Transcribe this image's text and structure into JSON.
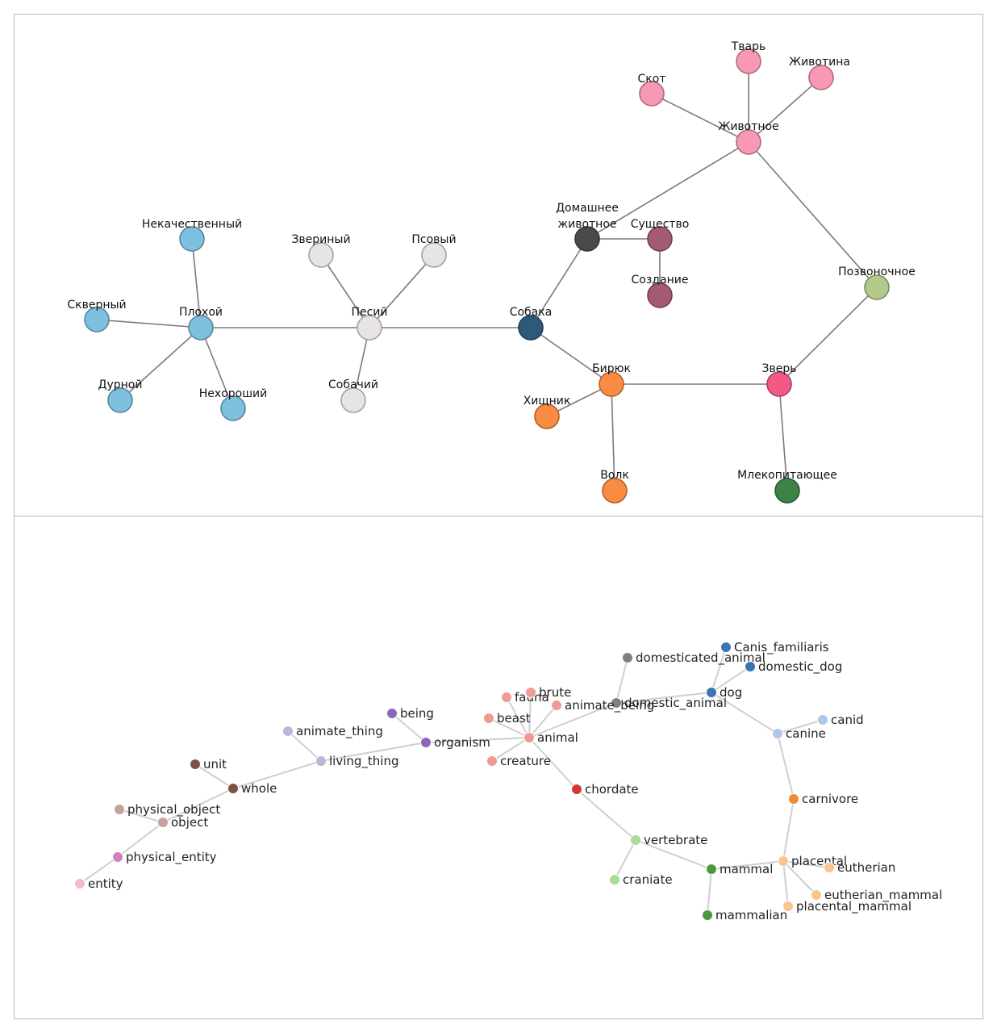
{
  "graph_ru": {
    "nodes": [
      {
        "id": "Некачественный",
        "color": "#7ec0de"
      },
      {
        "id": "Скверный",
        "color": "#7ec0de"
      },
      {
        "id": "Плохой",
        "color": "#7ec0de"
      },
      {
        "id": "Дурной",
        "color": "#7ec0de"
      },
      {
        "id": "Нехороший",
        "color": "#7ec0de"
      },
      {
        "id": "Звериный",
        "color": "#e8e4e6"
      },
      {
        "id": "Псовый",
        "color": "#e8e4e6"
      },
      {
        "id": "Песий",
        "color": "#e8e4e6"
      },
      {
        "id": "Собачий",
        "color": "#e8e4e6"
      },
      {
        "id": "Собака",
        "color": "#2d5a7b"
      },
      {
        "id": "Домашнее животное",
        "color": "#4a4a4a"
      },
      {
        "id": "Существо",
        "color": "#a45a75"
      },
      {
        "id": "Создание",
        "color": "#a45a75"
      },
      {
        "id": "Скот",
        "color": "#f799b2"
      },
      {
        "id": "Тварь",
        "color": "#f799b2"
      },
      {
        "id": "Животина",
        "color": "#f799b2"
      },
      {
        "id": "Животное",
        "color": "#f799b2"
      },
      {
        "id": "Позвоночное",
        "color": "#b2c98a"
      },
      {
        "id": "Бирюк",
        "color": "#f98b42"
      },
      {
        "id": "Хищник",
        "color": "#f98b42"
      },
      {
        "id": "Волк",
        "color": "#f98b42"
      },
      {
        "id": "Зверь",
        "color": "#f25a85"
      },
      {
        "id": "Млекопитающее",
        "color": "#3e8246"
      }
    ],
    "edges": [
      [
        "Некачественный",
        "Плохой"
      ],
      [
        "Скверный",
        "Плохой"
      ],
      [
        "Дурной",
        "Плохой"
      ],
      [
        "Нехороший",
        "Плохой"
      ],
      [
        "Плохой",
        "Песий"
      ],
      [
        "Звериный",
        "Песий"
      ],
      [
        "Псовый",
        "Песий"
      ],
      [
        "Собачий",
        "Песий"
      ],
      [
        "Песий",
        "Собака"
      ],
      [
        "Собака",
        "Домашнее животное"
      ],
      [
        "Собака",
        "Бирюк"
      ],
      [
        "Домашнее животное",
        "Существо"
      ],
      [
        "Домашнее животное",
        "Животное"
      ],
      [
        "Существо",
        "Создание"
      ],
      [
        "Скот",
        "Животное"
      ],
      [
        "Тварь",
        "Животное"
      ],
      [
        "Животина",
        "Животное"
      ],
      [
        "Животное",
        "Позвоночное"
      ],
      [
        "Позвоночное",
        "Зверь"
      ],
      [
        "Бирюк",
        "Хищник"
      ],
      [
        "Бирюк",
        "Волк"
      ],
      [
        "Бирюк",
        "Зверь"
      ],
      [
        "Зверь",
        "Млекопитающее"
      ]
    ]
  },
  "graph_en": {
    "nodes": [
      {
        "id": "domesticated_animal",
        "color": "#7f7f7f"
      },
      {
        "id": "Canis_familiaris",
        "color": "#3a75b0"
      },
      {
        "id": "domestic_dog",
        "color": "#3a75b0"
      },
      {
        "id": "dog",
        "color": "#3a75b0"
      },
      {
        "id": "domestic_animal",
        "color": "#7f7f7f"
      },
      {
        "id": "animate_being",
        "color": "#f09a94"
      },
      {
        "id": "fauna",
        "color": "#f09a94"
      },
      {
        "id": "brute",
        "color": "#f09a94"
      },
      {
        "id": "beast",
        "color": "#f09a94"
      },
      {
        "id": "animal",
        "color": "#f09a94"
      },
      {
        "id": "creature",
        "color": "#f09a94"
      },
      {
        "id": "being",
        "color": "#8c66bb"
      },
      {
        "id": "organism",
        "color": "#8c66bb"
      },
      {
        "id": "animate_thing",
        "color": "#c3b3d6"
      },
      {
        "id": "living_thing",
        "color": "#c3b3d6"
      },
      {
        "id": "unit",
        "color": "#7d5246"
      },
      {
        "id": "whole",
        "color": "#7d5246"
      },
      {
        "id": "physical_object",
        "color": "#c1a39b"
      },
      {
        "id": "object",
        "color": "#c1a39b"
      },
      {
        "id": "physical_entity",
        "color": "#d37ec0"
      },
      {
        "id": "entity",
        "color": "#f2b9d6"
      },
      {
        "id": "canid",
        "color": "#aec7e8"
      },
      {
        "id": "canine",
        "color": "#aec7e8"
      },
      {
        "id": "carnivore",
        "color": "#ef8a35"
      },
      {
        "id": "chordate",
        "color": "#d13a34"
      },
      {
        "id": "vertebrate",
        "color": "#a7dd95"
      },
      {
        "id": "craniate",
        "color": "#a7dd95"
      },
      {
        "id": "mammal",
        "color": "#4a9a3d"
      },
      {
        "id": "mammalian",
        "color": "#4a9a3d"
      },
      {
        "id": "placental",
        "color": "#f9c48d"
      },
      {
        "id": "eutherian",
        "color": "#f9c48d"
      },
      {
        "id": "eutherian_mammal",
        "color": "#f9c48d"
      },
      {
        "id": "placental_mammal",
        "color": "#f9c48d"
      }
    ],
    "edges": [
      [
        "entity",
        "physical_entity"
      ],
      [
        "physical_entity",
        "object"
      ],
      [
        "physical_object",
        "object"
      ],
      [
        "object",
        "whole"
      ],
      [
        "unit",
        "whole"
      ],
      [
        "whole",
        "living_thing"
      ],
      [
        "animate_thing",
        "living_thing"
      ],
      [
        "living_thing",
        "organism"
      ],
      [
        "being",
        "organism"
      ],
      [
        "organism",
        "animal"
      ],
      [
        "fauna",
        "animal"
      ],
      [
        "brute",
        "animal"
      ],
      [
        "beast",
        "animal"
      ],
      [
        "creature",
        "animal"
      ],
      [
        "animate_being",
        "animal"
      ],
      [
        "animal",
        "domestic_animal"
      ],
      [
        "animal",
        "chordate"
      ],
      [
        "domesticated_animal",
        "domestic_animal"
      ],
      [
        "domestic_animal",
        "dog"
      ],
      [
        "Canis_familiaris",
        "dog"
      ],
      [
        "domestic_dog",
        "dog"
      ],
      [
        "dog",
        "canine"
      ],
      [
        "canid",
        "canine"
      ],
      [
        "canine",
        "carnivore"
      ],
      [
        "carnivore",
        "placental"
      ],
      [
        "chordate",
        "vertebrate"
      ],
      [
        "vertebrate",
        "craniate"
      ],
      [
        "vertebrate",
        "mammal"
      ],
      [
        "mammal",
        "mammalian"
      ],
      [
        "mammal",
        "placental"
      ],
      [
        "placental",
        "eutherian"
      ],
      [
        "placental",
        "eutherian_mammal"
      ],
      [
        "placental",
        "placental_mammal"
      ]
    ]
  }
}
